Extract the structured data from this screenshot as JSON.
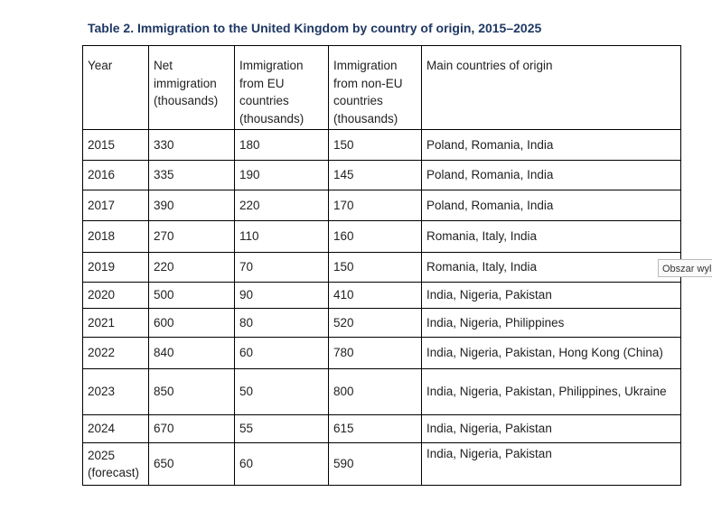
{
  "title": "Table 2. Immigration to the United Kingdom by country of origin, 2015–2025",
  "table": {
    "header": [
      "Year",
      "Net immigration (thousands)",
      "Immigration from EU countries (thousands)",
      "Immigration from non-EU countries (thousands)",
      "Main countries of origin"
    ],
    "rows": [
      [
        "2015",
        "330",
        "180",
        "150",
        "Poland, Romania, India"
      ],
      [
        "2016",
        "335",
        "190",
        "145",
        "Poland, Romania, India"
      ],
      [
        "2017",
        "390",
        "220",
        "170",
        "Poland, Romania, India"
      ],
      [
        "2018",
        "270",
        "110",
        "160",
        "Romania, Italy, India"
      ],
      [
        "2019",
        "220",
        "70",
        "150",
        "Romania, Italy, India"
      ],
      [
        "2020",
        "500",
        "90",
        "410",
        "India, Nigeria, Pakistan"
      ],
      [
        "2021",
        "600",
        "80",
        "520",
        "India, Nigeria, Philippines"
      ],
      [
        "2022",
        "840",
        "60",
        "780",
        "India, Nigeria, Pakistan, Hong Kong (China)"
      ],
      [
        "2023",
        "850",
        "50",
        "800",
        "India, Nigeria, Pakistan, Philippines, Ukraine"
      ],
      [
        "2024",
        "670",
        "55",
        "615",
        "India, Nigeria, Pakistan"
      ],
      [
        "2025 (forecast)",
        "650",
        "60",
        "590",
        "India, Nigeria, Pakistan"
      ]
    ]
  },
  "side_note": "Obszar wyl"
}
